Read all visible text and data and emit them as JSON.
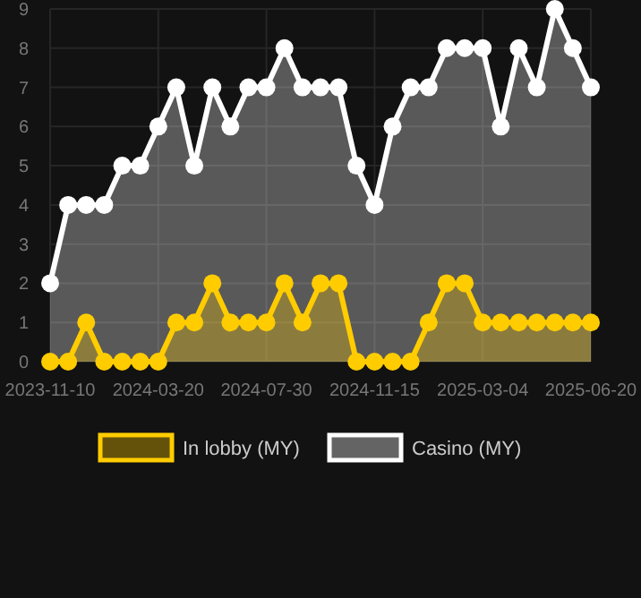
{
  "chart_data": {
    "type": "area",
    "categories": [
      "2023-11-10",
      null,
      null,
      null,
      null,
      null,
      "2024-03-20",
      null,
      null,
      null,
      null,
      null,
      "2024-07-30",
      null,
      null,
      null,
      null,
      null,
      "2024-11-15",
      null,
      null,
      null,
      null,
      null,
      "2025-03-04",
      null,
      null,
      null,
      null,
      null,
      "2025-06-20"
    ],
    "series": [
      {
        "name": "In lobby (MY)",
        "color": "#ffcc00",
        "values": [
          0,
          0,
          1,
          0,
          0,
          0,
          0,
          1,
          1,
          2,
          1,
          1,
          1,
          2,
          1,
          2,
          2,
          0,
          0,
          0,
          0,
          1,
          2,
          2,
          1,
          1,
          1,
          1,
          1,
          1,
          1
        ]
      },
      {
        "name": "Casino (MY)",
        "color": "#ffffff",
        "values": [
          2,
          4,
          4,
          4,
          5,
          5,
          6,
          7,
          5,
          7,
          6,
          7,
          7,
          8,
          7,
          7,
          7,
          5,
          4,
          6,
          7,
          7,
          8,
          8,
          8,
          6,
          8,
          7,
          9,
          8,
          7
        ]
      }
    ],
    "ylim": [
      0,
      9
    ],
    "yticks": [
      0,
      1,
      2,
      3,
      4,
      5,
      6,
      7,
      8,
      9
    ],
    "grid": true,
    "legend": "bottom",
    "marker": "circle"
  }
}
